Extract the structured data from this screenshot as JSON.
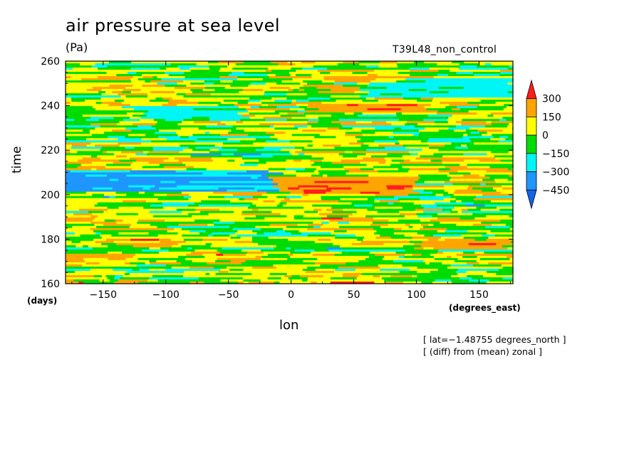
{
  "chart_data": {
    "type": "heatmap",
    "title": "air pressure at sea level",
    "units": "(Pa)",
    "run_label": "T39L48_non_control",
    "xlabel": "lon",
    "ylabel": "time",
    "x_unit": "(degrees_east)",
    "y_unit": "(days)",
    "xlim": [
      -180,
      177
    ],
    "ylim": [
      160,
      260
    ],
    "x_ticks": [
      -150,
      -100,
      -50,
      0,
      50,
      100,
      150
    ],
    "x_tick_labels": [
      "−150",
      "−100",
      "−50",
      "0",
      "50",
      "100",
      "150"
    ],
    "y_ticks": [
      160,
      180,
      200,
      220,
      240,
      260
    ],
    "y_tick_labels": [
      "160",
      "180",
      "200",
      "220",
      "240",
      "260"
    ],
    "levels": [
      -450,
      -300,
      -150,
      0,
      150,
      300
    ],
    "level_labels": [
      "−450",
      "−300",
      "−150",
      "0",
      "150",
      "300"
    ],
    "colors": [
      "#1464e6",
      "#1e96ff",
      "#00f5f5",
      "#00dc00",
      "#ffff00",
      "#ffa500",
      "#ff1e1e"
    ],
    "features": [
      {
        "type": "low",
        "lon": [
          -180,
          -10
        ],
        "day": [
          201,
          211
        ],
        "value": -400
      },
      {
        "type": "low",
        "lon": [
          -120,
          -40
        ],
        "day": [
          234,
          240
        ],
        "value": -250
      },
      {
        "type": "low",
        "lon": [
          60,
          177
        ],
        "day": [
          244,
          252
        ],
        "value": -250
      },
      {
        "type": "high",
        "lon": [
          -10,
          100
        ],
        "day": [
          200,
          208
        ],
        "value": 320
      },
      {
        "type": "high",
        "lon": [
          20,
          110
        ],
        "day": [
          237,
          241
        ],
        "value": 320
      },
      {
        "type": "high",
        "lon": [
          30,
          90
        ],
        "day": [
          250,
          254
        ],
        "value": 200
      },
      {
        "type": "high",
        "lon": [
          100,
          177
        ],
        "day": [
          175,
          179
        ],
        "value": 250
      },
      {
        "type": "high",
        "lon": [
          -180,
          -130
        ],
        "day": [
          168,
          173
        ],
        "value": 200
      }
    ],
    "notes": [
      "[ lat=−1.48755 degrees_north ]",
      "[ (diff) from (mean) zonal ]"
    ]
  }
}
